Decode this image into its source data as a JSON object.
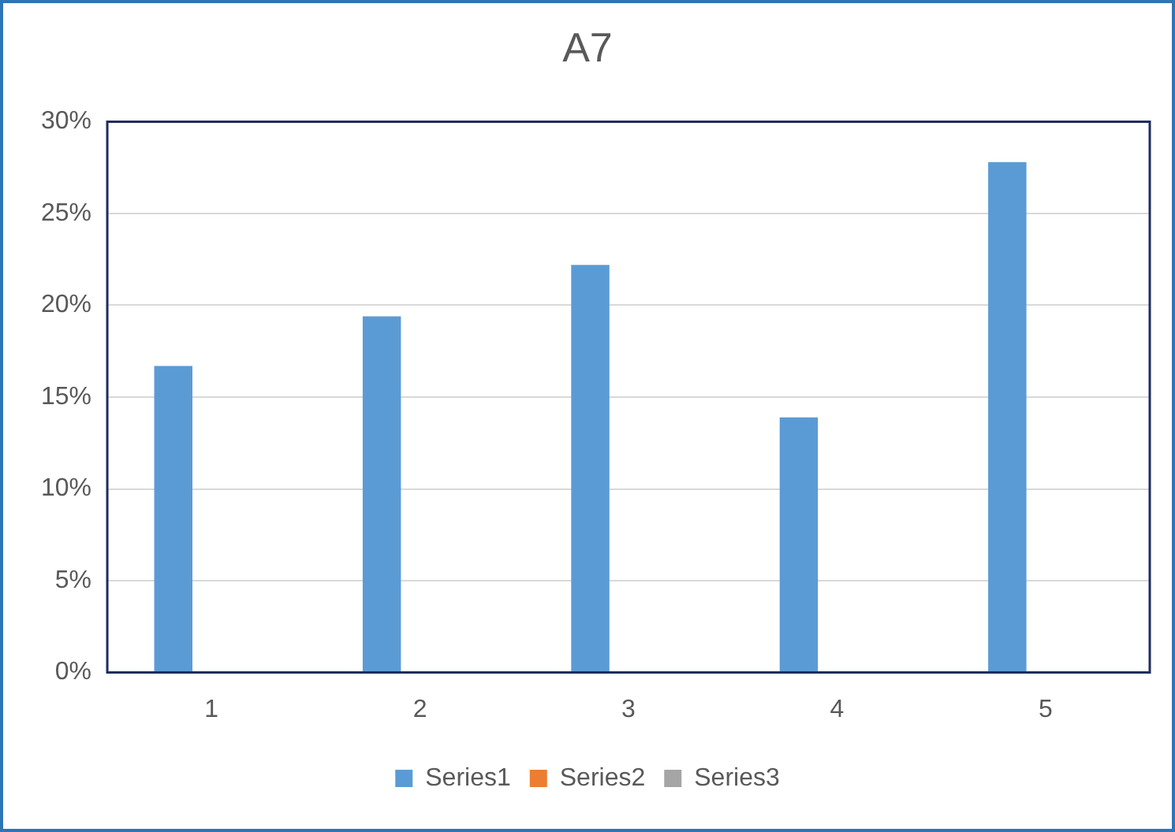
{
  "chart_data": {
    "type": "bar",
    "title": "A7",
    "categories": [
      "1",
      "2",
      "3",
      "4",
      "5"
    ],
    "series": [
      {
        "name": "Series1",
        "color": "#5b9bd5",
        "values": [
          16.7,
          19.4,
          22.2,
          13.9,
          27.8
        ]
      },
      {
        "name": "Series2",
        "color": "#ed7d31",
        "values": [
          0,
          0,
          0,
          0,
          0
        ]
      },
      {
        "name": "Series3",
        "color": "#a5a5a5",
        "values": [
          0,
          0,
          0,
          0,
          0
        ]
      }
    ],
    "ylim": [
      0,
      30
    ],
    "yticks": [
      {
        "value": 0,
        "label": "0%"
      },
      {
        "value": 5,
        "label": "5%"
      },
      {
        "value": 10,
        "label": "10%"
      },
      {
        "value": 15,
        "label": "15%"
      },
      {
        "value": 20,
        "label": "20%"
      },
      {
        "value": 25,
        "label": "25%"
      },
      {
        "value": 30,
        "label": "30%"
      }
    ],
    "grid": "y",
    "legend": "bottom"
  }
}
